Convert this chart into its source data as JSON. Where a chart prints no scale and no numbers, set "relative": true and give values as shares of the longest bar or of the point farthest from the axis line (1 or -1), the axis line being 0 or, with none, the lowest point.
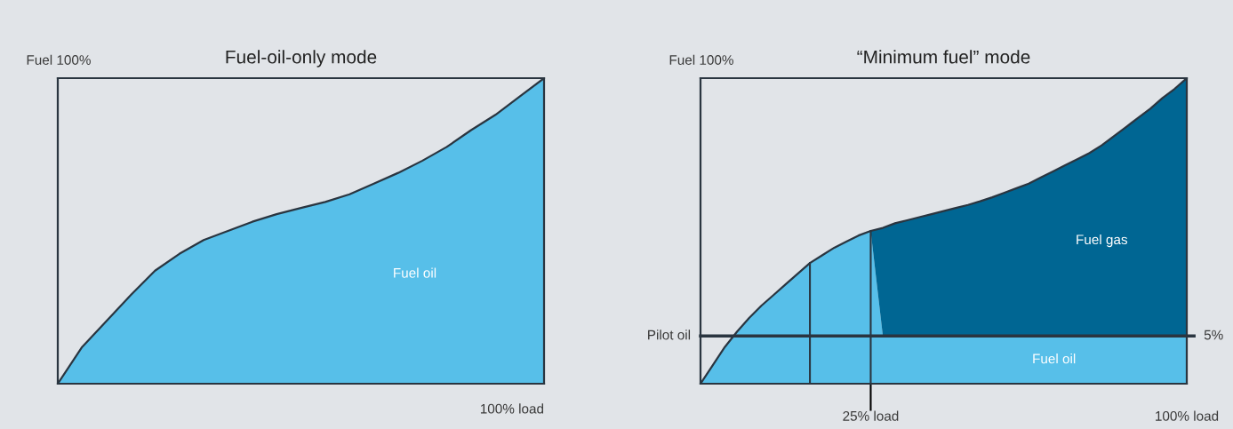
{
  "chart_data": [
    {
      "type": "area",
      "title": "Fuel-oil-only mode",
      "relative": true,
      "categories": [
        null,
        null,
        null,
        null,
        null,
        null,
        null,
        null,
        null,
        null,
        null,
        null,
        null,
        null,
        null,
        null,
        null,
        null,
        null,
        null,
        null
      ],
      "series": [
        {
          "name": "Fuel oil",
          "color": "#57bfe9",
          "values": [
            0,
            0.12,
            0.205,
            0.29,
            0.37,
            0.425,
            0.47,
            0.5,
            0.53,
            0.555,
            0.575,
            0.595,
            0.62,
            0.655,
            0.69,
            0.73,
            0.775,
            0.83,
            0.88,
            0.94,
            1
          ]
        }
      ],
      "annotations": [
        "Fuel 100%",
        "100% load"
      ]
    },
    {
      "type": "area",
      "title": "“Minimum fuel” mode",
      "relative": true,
      "stacked": true,
      "categories": [
        null,
        null,
        null,
        null,
        null,
        null,
        null,
        null,
        null,
        null,
        null,
        null,
        null,
        null,
        "25% load",
        null,
        null,
        null,
        null,
        null,
        null,
        null,
        null,
        null,
        null,
        null,
        null,
        null,
        null,
        null,
        null,
        null,
        null,
        null,
        null,
        null,
        null,
        null,
        null,
        null,
        "100% load"
      ],
      "series": [
        {
          "name": "Fuel oil",
          "color": "#57bfe9",
          "values": [
            0,
            0.06,
            0.12,
            0.17,
            0.215,
            0.255,
            0.29,
            0.325,
            0.36,
            0.395,
            0.42,
            0.445,
            0.465,
            0.485,
            0.5,
            0.156,
            0.156,
            0.156,
            0.156,
            0.156,
            0.156,
            0.156,
            0.156,
            0.156,
            0.156,
            0.156,
            0.156,
            0.156,
            0.156,
            0.156,
            0.156,
            0.156,
            0.156,
            0.156,
            0.156,
            0.156,
            0.156,
            0.156,
            0.156,
            0.156,
            0.156
          ]
        },
        {
          "name": "Fuel gas",
          "color": "#006693",
          "values": [
            0,
            0,
            0,
            0,
            0,
            0,
            0,
            0,
            0,
            0,
            0,
            0,
            0,
            0,
            0,
            0.354,
            0.369,
            0.379,
            0.389,
            0.399,
            0.409,
            0.419,
            0.429,
            0.441,
            0.454,
            0.469,
            0.484,
            0.499,
            0.519,
            0.539,
            0.559,
            0.579,
            0.599,
            0.624,
            0.654,
            0.684,
            0.714,
            0.744,
            0.779,
            0.809,
            0.844
          ]
        }
      ],
      "ref_lines": [
        {
          "axis": "y",
          "value": 0.156,
          "label": "Pilot oil",
          "color": "#2a3540"
        }
      ],
      "annotations": [
        "Fuel 100%",
        {
          "text": "5%",
          "x": "100% load",
          "y": 0.156
        }
      ]
    }
  ]
}
